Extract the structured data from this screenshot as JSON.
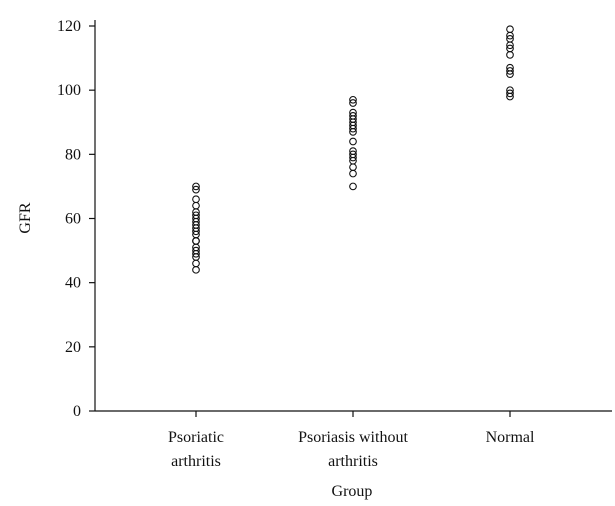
{
  "chart_data": {
    "type": "scatter",
    "xlabel": "Group",
    "ylabel": "GFR",
    "ylim": [
      0,
      120
    ],
    "yticks": [
      "0",
      "20",
      "40",
      "60",
      "80",
      "100",
      "120"
    ],
    "categories": [
      {
        "line1": "Psoriatic",
        "line2": "arthritis"
      },
      {
        "line1": "Psoriasis without",
        "line2": "arthritis"
      },
      {
        "line1": "Normal",
        "line2": ""
      }
    ],
    "series": [
      {
        "values": [
          44,
          46,
          48,
          49,
          50,
          51,
          53,
          53,
          55,
          56,
          57,
          58,
          59,
          60,
          61,
          62,
          64,
          66,
          69,
          70
        ]
      },
      {
        "values": [
          70,
          74,
          76,
          78,
          79,
          80,
          81,
          84,
          87,
          88,
          89,
          90,
          91,
          92,
          93,
          96,
          97
        ]
      },
      {
        "values": [
          98,
          99,
          100,
          105,
          106,
          107,
          111,
          113,
          114,
          116,
          117,
          119
        ]
      }
    ]
  }
}
